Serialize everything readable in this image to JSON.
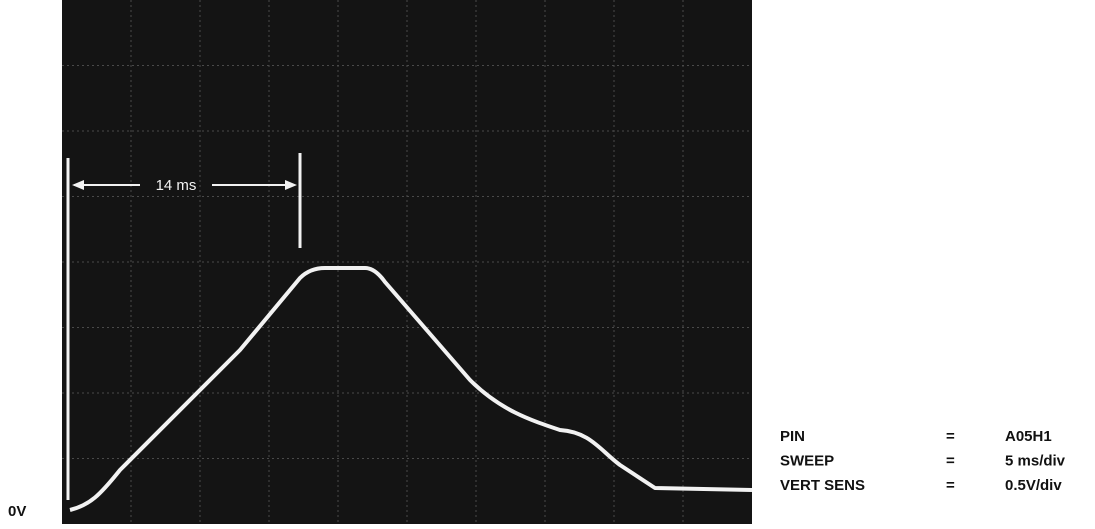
{
  "annotation": "14 ms",
  "baseline_label": "0V",
  "settings": {
    "rows": [
      [
        "PIN",
        "=",
        "A05H1"
      ],
      [
        "SWEEP",
        "=",
        "5 ms/div"
      ],
      [
        "VERT SENS",
        "=",
        "0.5V/div"
      ]
    ]
  }
}
